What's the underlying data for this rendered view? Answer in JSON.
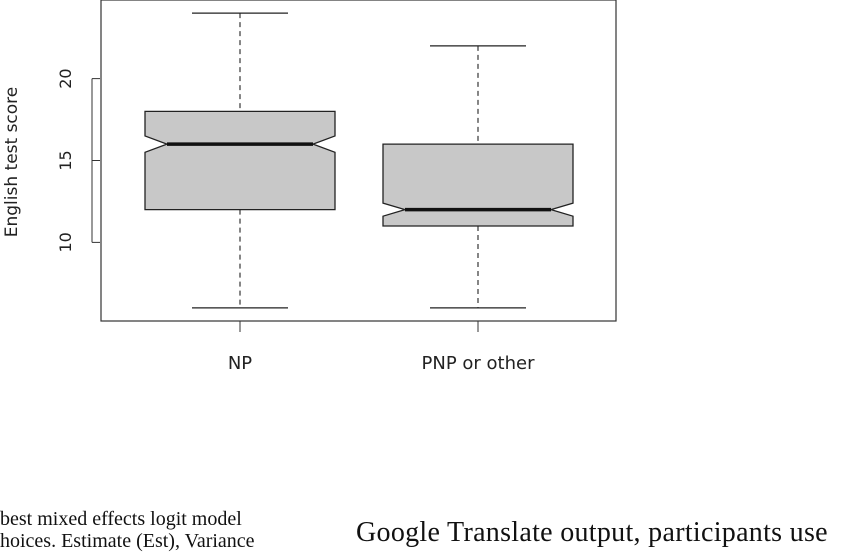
{
  "chart_data": {
    "type": "boxplot",
    "notched": true,
    "ylabel": "English test score",
    "xlabel": "",
    "yticks": [
      10,
      15,
      20
    ],
    "ylim": [
      5.2,
      24.8
    ],
    "categories": [
      "NP",
      "PNP or other"
    ],
    "series": [
      {
        "name": "NP",
        "whisker_low": 6,
        "q1": 12,
        "median": 16,
        "q3": 18,
        "whisker_high": 24,
        "notch_low": 15.5,
        "notch_high": 16.5
      },
      {
        "name": "PNP or other",
        "whisker_low": 6,
        "q1": 11,
        "median": 12,
        "q3": 16,
        "whisker_high": 22,
        "notch_low": 11.6,
        "notch_high": 12.4
      }
    ],
    "box_fill": "#c8c8c8"
  },
  "page_text": {
    "left_line1": "best mixed effects logit model",
    "left_line2": "hoices. Estimate (Est), Variance",
    "right_line1": "Google Translate output, participants use"
  }
}
